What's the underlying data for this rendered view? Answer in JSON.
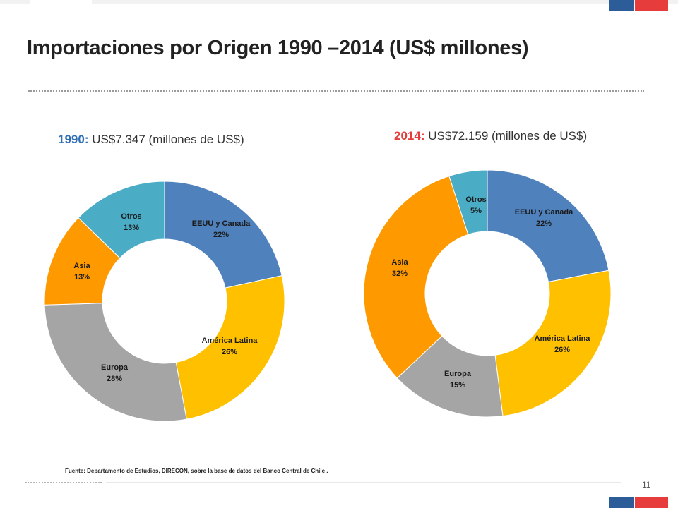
{
  "title": "Importaciones por Origen 1990 –2014 (US$ millones)",
  "source": "Fuente: Departamento de Estudios, DIRECON, sobre la base de datos del Banco Central de Chile .",
  "page_number": "11",
  "colors": {
    "eeuu": "#4f81bd",
    "america_latina": "#ffc000",
    "europa": "#a5a5a5",
    "asia": "#ff9900",
    "otros": "#4bacc6",
    "year_1990": "#2f6eb5",
    "year_2014": "#e63c3c"
  },
  "chart_data": [
    {
      "type": "pie",
      "subtitle_year": "1990:",
      "subtitle_rest": " US$7.347 (millones de US$)",
      "categories": [
        "EEUU y Canada",
        "América Latina",
        "Europa",
        "Asia",
        "Otros"
      ],
      "values": [
        22,
        26,
        28,
        13,
        13
      ],
      "value_labels": [
        "22%",
        "26%",
        "28%",
        "13%",
        "13%"
      ],
      "colors": [
        "#4f81bd",
        "#ffc000",
        "#a5a5a5",
        "#ff9900",
        "#4bacc6"
      ],
      "donut": true,
      "start_angle": "12 o'clock, clockwise"
    },
    {
      "type": "pie",
      "subtitle_year": "2014:",
      "subtitle_rest": " US$72.159 (millones de US$)",
      "categories": [
        "EEUU y Canada",
        "América Latina",
        "Europa",
        "Asia",
        "Otros"
      ],
      "values": [
        22,
        26,
        15,
        32,
        5
      ],
      "value_labels": [
        "22%",
        "26%",
        "15%",
        "32%",
        "5%"
      ],
      "colors": [
        "#4f81bd",
        "#ffc000",
        "#a5a5a5",
        "#ff9900",
        "#4bacc6"
      ],
      "donut": true,
      "start_angle": "12 o'clock, clockwise"
    }
  ]
}
